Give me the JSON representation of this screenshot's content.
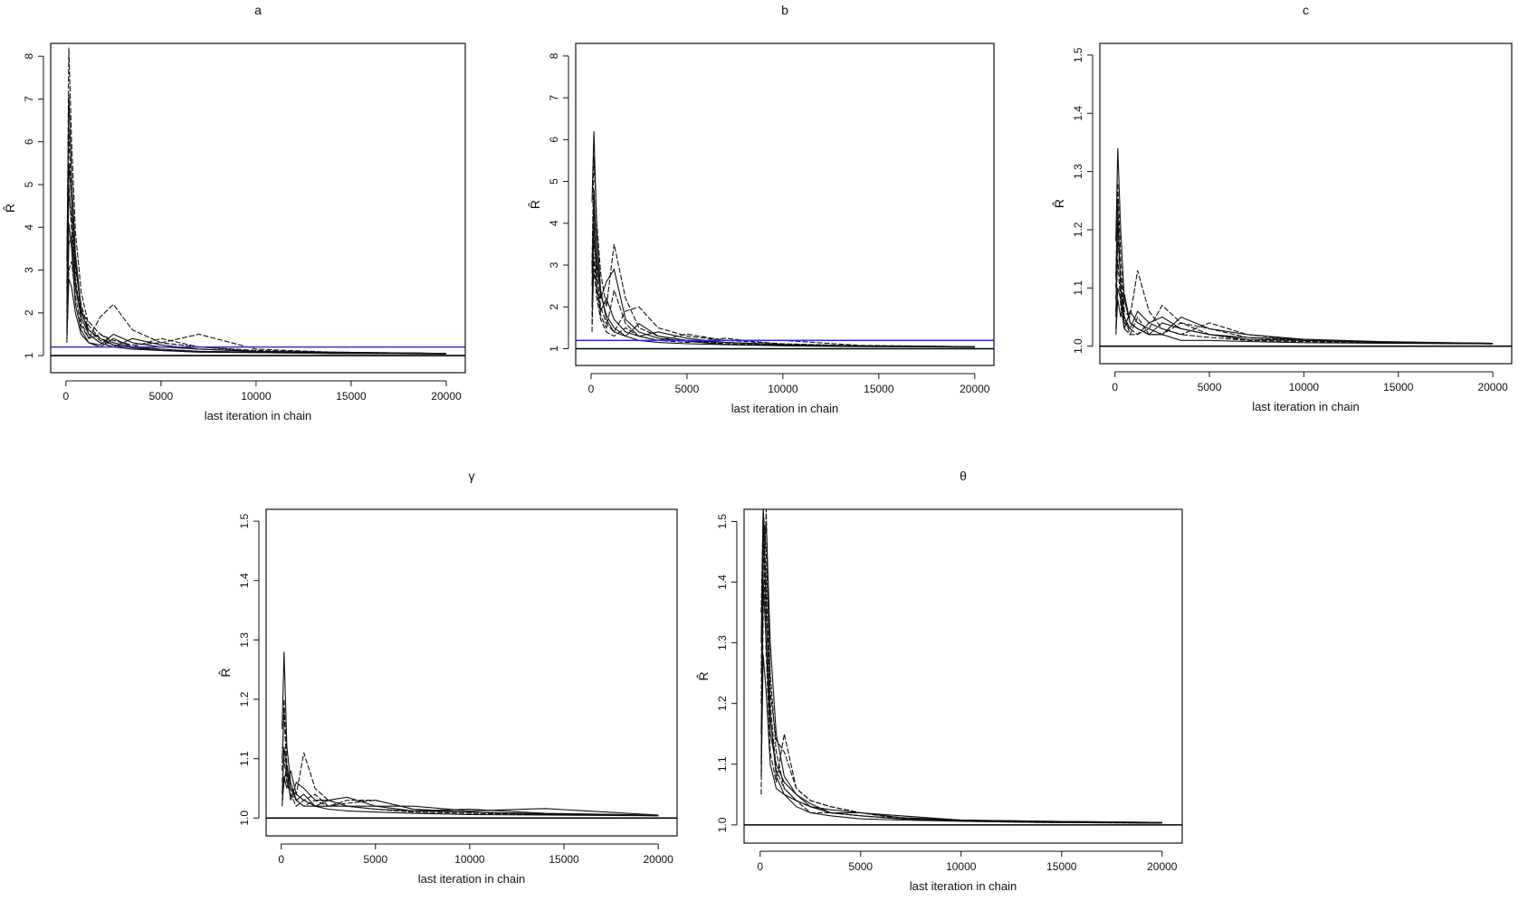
{
  "chart_data": [
    {
      "type": "line",
      "title": "a",
      "xlabel": "last iteration in chain",
      "ylabel": "R̂",
      "xlim": [
        -800,
        21000
      ],
      "ylim": [
        0.6,
        8.3
      ],
      "xticks": [
        0,
        5000,
        10000,
        15000,
        20000
      ],
      "yticks": [
        1,
        2,
        3,
        4,
        5,
        6,
        7,
        8
      ],
      "yticklabels": [
        "1",
        "2",
        "3",
        "4",
        "5",
        "6",
        "7",
        "8"
      ],
      "reference_lines": [
        {
          "y": 1.0,
          "color": "#000000"
        },
        {
          "y": 1.2,
          "color": "#3333cc"
        }
      ],
      "iterations": [
        50,
        150,
        300,
        500,
        800,
        1200,
        1800,
        2500,
        3500,
        5000,
        7000,
        10000,
        14000,
        20000
      ],
      "series": [
        {
          "values": [
            3.2,
            7.1,
            5.2,
            3.4,
            2.1,
            1.5,
            1.3,
            1.2,
            1.15,
            1.12,
            1.1,
            1.08,
            1.06,
            1.05
          ]
        },
        {
          "values": [
            2.5,
            8.2,
            6.0,
            3.9,
            2.5,
            1.7,
            1.4,
            1.3,
            1.2,
            1.15,
            1.1,
            1.08,
            1.07,
            1.05
          ]
        },
        {
          "values": [
            1.6,
            5.5,
            4.6,
            3.2,
            2.0,
            1.6,
            1.4,
            1.25,
            1.18,
            1.12,
            1.08,
            1.07,
            1.05,
            1.04
          ]
        },
        {
          "values": [
            2.0,
            4.8,
            4.2,
            2.8,
            1.8,
            1.4,
            1.9,
            2.2,
            1.6,
            1.3,
            1.2,
            1.12,
            1.08,
            1.05
          ]
        },
        {
          "values": [
            1.5,
            3.6,
            3.8,
            2.6,
            1.9,
            1.5,
            1.3,
            1.2,
            1.4,
            1.25,
            1.15,
            1.1,
            1.07,
            1.05
          ]
        },
        {
          "values": [
            1.3,
            3.0,
            3.2,
            2.4,
            1.7,
            1.4,
            1.5,
            1.3,
            1.2,
            1.4,
            1.2,
            1.1,
            1.06,
            1.04
          ]
        },
        {
          "values": [
            1.8,
            4.1,
            3.5,
            2.2,
            1.6,
            1.3,
            1.25,
            1.5,
            1.3,
            1.2,
            1.15,
            1.1,
            1.08,
            1.05
          ]
        },
        {
          "values": [
            2.2,
            5.0,
            3.9,
            2.7,
            2.0,
            1.8,
            1.5,
            1.35,
            1.25,
            1.3,
            1.5,
            1.15,
            1.08,
            1.05
          ]
        },
        {
          "values": [
            1.4,
            2.8,
            2.6,
            2.0,
            1.5,
            1.3,
            1.2,
            1.4,
            1.2,
            1.15,
            1.1,
            1.08,
            1.05,
            1.04
          ]
        },
        {
          "values": [
            2.7,
            6.3,
            4.5,
            3.0,
            2.2,
            1.6,
            1.35,
            1.25,
            1.18,
            1.12,
            1.09,
            1.07,
            1.05,
            1.04
          ]
        }
      ]
    },
    {
      "type": "line",
      "title": "b",
      "xlabel": "last iteration in chain",
      "ylabel": "R̂",
      "xlim": [
        -800,
        21000
      ],
      "ylim": [
        0.6,
        8.3
      ],
      "xticks": [
        0,
        5000,
        10000,
        15000,
        20000
      ],
      "yticks": [
        1,
        2,
        3,
        4,
        5,
        6,
        7,
        8
      ],
      "yticklabels": [
        "1",
        "2",
        "3",
        "4",
        "5",
        "6",
        "7",
        "8"
      ],
      "reference_lines": [
        {
          "y": 1.0,
          "color": "#000000"
        },
        {
          "y": 1.2,
          "color": "#3333cc"
        }
      ],
      "iterations": [
        50,
        150,
        300,
        500,
        800,
        1200,
        1800,
        2500,
        3500,
        5000,
        7000,
        10000,
        14000,
        20000
      ],
      "series": [
        {
          "values": [
            4.5,
            6.2,
            3.8,
            2.4,
            1.7,
            1.4,
            1.3,
            1.2,
            1.15,
            1.12,
            1.1,
            1.08,
            1.06,
            1.05
          ]
        },
        {
          "values": [
            3.0,
            5.6,
            4.0,
            2.8,
            2.0,
            3.5,
            2.2,
            1.5,
            1.3,
            1.2,
            1.12,
            1.08,
            1.06,
            1.05
          ]
        },
        {
          "values": [
            2.0,
            4.4,
            3.3,
            2.2,
            2.6,
            2.9,
            1.7,
            1.4,
            1.25,
            1.18,
            1.1,
            1.07,
            1.05,
            1.04
          ]
        },
        {
          "values": [
            1.6,
            3.6,
            2.8,
            2.0,
            1.6,
            1.4,
            1.9,
            2.0,
            1.5,
            1.3,
            1.2,
            1.12,
            1.07,
            1.05
          ]
        },
        {
          "values": [
            2.5,
            4.0,
            2.5,
            1.9,
            2.2,
            1.7,
            1.4,
            1.3,
            1.4,
            1.25,
            1.15,
            1.1,
            1.06,
            1.05
          ]
        },
        {
          "values": [
            1.4,
            3.2,
            2.4,
            1.8,
            1.5,
            2.4,
            1.6,
            1.3,
            1.2,
            1.35,
            1.2,
            1.2,
            1.08,
            1.05
          ]
        },
        {
          "values": [
            2.8,
            4.8,
            3.0,
            2.3,
            1.8,
            1.5,
            1.3,
            1.6,
            1.3,
            1.2,
            1.15,
            1.1,
            1.06,
            1.04
          ]
        },
        {
          "values": [
            1.8,
            2.9,
            2.2,
            1.7,
            1.4,
            1.3,
            1.5,
            1.3,
            1.2,
            1.15,
            1.25,
            1.1,
            1.07,
            1.05
          ]
        }
      ]
    },
    {
      "type": "line",
      "title": "c",
      "xlabel": "last iteration in chain",
      "ylabel": "R̂",
      "xlim": [
        -800,
        21000
      ],
      "ylim": [
        0.97,
        1.52
      ],
      "xticks": [
        0,
        5000,
        10000,
        15000,
        20000
      ],
      "yticks": [
        1.0,
        1.1,
        1.2,
        1.3,
        1.4,
        1.5
      ],
      "yticklabels": [
        "1.0",
        "1.1",
        "1.2",
        "1.3",
        "1.4",
        "1.5"
      ],
      "reference_lines": [
        {
          "y": 1.0,
          "color": "#000000"
        }
      ],
      "iterations": [
        50,
        150,
        300,
        500,
        800,
        1200,
        1800,
        2500,
        3500,
        5000,
        7000,
        10000,
        14000,
        20000
      ],
      "series": [
        {
          "values": [
            1.18,
            1.34,
            1.2,
            1.08,
            1.04,
            1.03,
            1.02,
            1.02,
            1.01,
            1.01,
            1.008,
            1.006,
            1.005,
            1.004
          ]
        },
        {
          "values": [
            1.12,
            1.28,
            1.15,
            1.06,
            1.05,
            1.13,
            1.06,
            1.03,
            1.02,
            1.015,
            1.01,
            1.008,
            1.006,
            1.005
          ]
        },
        {
          "values": [
            1.05,
            1.22,
            1.1,
            1.04,
            1.03,
            1.06,
            1.04,
            1.05,
            1.03,
            1.02,
            1.012,
            1.01,
            1.007,
            1.005
          ]
        },
        {
          "values": [
            1.08,
            1.18,
            1.12,
            1.05,
            1.02,
            1.02,
            1.03,
            1.07,
            1.04,
            1.03,
            1.015,
            1.01,
            1.006,
            1.004
          ]
        },
        {
          "values": [
            1.03,
            1.1,
            1.08,
            1.03,
            1.06,
            1.04,
            1.03,
            1.02,
            1.05,
            1.03,
            1.02,
            1.012,
            1.007,
            1.005
          ]
        },
        {
          "values": [
            1.1,
            1.25,
            1.09,
            1.05,
            1.03,
            1.02,
            1.04,
            1.03,
            1.02,
            1.04,
            1.02,
            1.01,
            1.006,
            1.005
          ]
        },
        {
          "values": [
            1.02,
            1.08,
            1.05,
            1.09,
            1.04,
            1.03,
            1.02,
            1.04,
            1.03,
            1.02,
            1.015,
            1.012,
            1.008,
            1.005
          ]
        },
        {
          "values": [
            1.06,
            1.15,
            1.07,
            1.03,
            1.02,
            1.05,
            1.02,
            1.02,
            1.04,
            1.02,
            1.01,
            1.008,
            1.006,
            1.004
          ]
        }
      ]
    },
    {
      "type": "line",
      "title": "γ",
      "xlabel": "last iteration in chain",
      "ylabel": "R̂",
      "xlim": [
        -800,
        21000
      ],
      "ylim": [
        0.97,
        1.52
      ],
      "xticks": [
        0,
        5000,
        10000,
        15000,
        20000
      ],
      "yticks": [
        1.0,
        1.1,
        1.2,
        1.3,
        1.4,
        1.5
      ],
      "yticklabels": [
        "1.0",
        "1.1",
        "1.2",
        "1.3",
        "1.4",
        "1.5"
      ],
      "reference_lines": [
        {
          "y": 1.0,
          "color": "#000000"
        }
      ],
      "iterations": [
        50,
        150,
        300,
        500,
        800,
        1200,
        1800,
        2500,
        3500,
        5000,
        7000,
        10000,
        14000,
        20000
      ],
      "series": [
        {
          "values": [
            1.15,
            1.28,
            1.12,
            1.06,
            1.03,
            1.02,
            1.02,
            1.015,
            1.012,
            1.01,
            1.008,
            1.006,
            1.005,
            1.004
          ]
        },
        {
          "values": [
            1.08,
            1.2,
            1.09,
            1.05,
            1.04,
            1.11,
            1.05,
            1.03,
            1.02,
            1.015,
            1.01,
            1.008,
            1.006,
            1.004
          ]
        },
        {
          "values": [
            1.04,
            1.12,
            1.08,
            1.03,
            1.06,
            1.05,
            1.03,
            1.03,
            1.035,
            1.02,
            1.012,
            1.01,
            1.006,
            1.005
          ]
        },
        {
          "values": [
            1.06,
            1.1,
            1.06,
            1.04,
            1.02,
            1.03,
            1.04,
            1.02,
            1.03,
            1.03,
            1.015,
            1.01,
            1.007,
            1.004
          ]
        },
        {
          "values": [
            1.02,
            1.07,
            1.05,
            1.08,
            1.04,
            1.03,
            1.02,
            1.03,
            1.02,
            1.02,
            1.02,
            1.012,
            1.016,
            1.005
          ]
        },
        {
          "values": [
            1.1,
            1.18,
            1.07,
            1.04,
            1.03,
            1.02,
            1.03,
            1.02,
            1.025,
            1.03,
            1.015,
            1.01,
            1.007,
            1.004
          ]
        },
        {
          "values": [
            1.03,
            1.06,
            1.09,
            1.05,
            1.03,
            1.04,
            1.02,
            1.02,
            1.02,
            1.015,
            1.012,
            1.015,
            1.008,
            1.005
          ]
        }
      ]
    },
    {
      "type": "line",
      "title": "θ",
      "xlabel": "last iteration in chain",
      "ylabel": "R̂",
      "xlim": [
        -800,
        21000
      ],
      "ylim": [
        0.97,
        1.52
      ],
      "xticks": [
        0,
        5000,
        10000,
        15000,
        20000
      ],
      "yticks": [
        1.0,
        1.1,
        1.2,
        1.3,
        1.4,
        1.5
      ],
      "yticklabels": [
        "1.0",
        "1.1",
        "1.2",
        "1.3",
        "1.4",
        "1.5"
      ],
      "reference_lines": [
        {
          "y": 1.0,
          "color": "#000000"
        }
      ],
      "iterations": [
        50,
        150,
        300,
        500,
        800,
        1200,
        1800,
        2500,
        3500,
        5000,
        7000,
        10000,
        14000,
        20000
      ],
      "series": [
        {
          "values": [
            1.3,
            1.52,
            1.35,
            1.18,
            1.08,
            1.05,
            1.03,
            1.02,
            1.015,
            1.01,
            1.008,
            1.006,
            1.004,
            1.003
          ]
        },
        {
          "values": [
            1.2,
            1.52,
            1.45,
            1.25,
            1.12,
            1.06,
            1.04,
            1.03,
            1.02,
            1.015,
            1.01,
            1.007,
            1.005,
            1.003
          ]
        },
        {
          "values": [
            1.1,
            1.45,
            1.5,
            1.3,
            1.15,
            1.08,
            1.05,
            1.03,
            1.02,
            1.015,
            1.01,
            1.007,
            1.005,
            1.003
          ]
        },
        {
          "values": [
            1.05,
            1.35,
            1.52,
            1.22,
            1.14,
            1.12,
            1.06,
            1.04,
            1.03,
            1.02,
            1.012,
            1.008,
            1.005,
            1.004
          ]
        },
        {
          "values": [
            1.15,
            1.4,
            1.3,
            1.15,
            1.1,
            1.07,
            1.05,
            1.035,
            1.02,
            1.02,
            1.012,
            1.008,
            1.006,
            1.004
          ]
        },
        {
          "values": [
            1.25,
            1.5,
            1.28,
            1.12,
            1.07,
            1.15,
            1.06,
            1.04,
            1.03,
            1.02,
            1.01,
            1.007,
            1.005,
            1.003
          ]
        },
        {
          "values": [
            1.08,
            1.28,
            1.22,
            1.1,
            1.06,
            1.05,
            1.04,
            1.03,
            1.025,
            1.02,
            1.015,
            1.008,
            1.006,
            1.004
          ]
        },
        {
          "values": [
            1.35,
            1.52,
            1.4,
            1.2,
            1.09,
            1.06,
            1.04,
            1.02,
            1.02,
            1.015,
            1.01,
            1.006,
            1.004,
            1.003
          ]
        }
      ]
    }
  ]
}
